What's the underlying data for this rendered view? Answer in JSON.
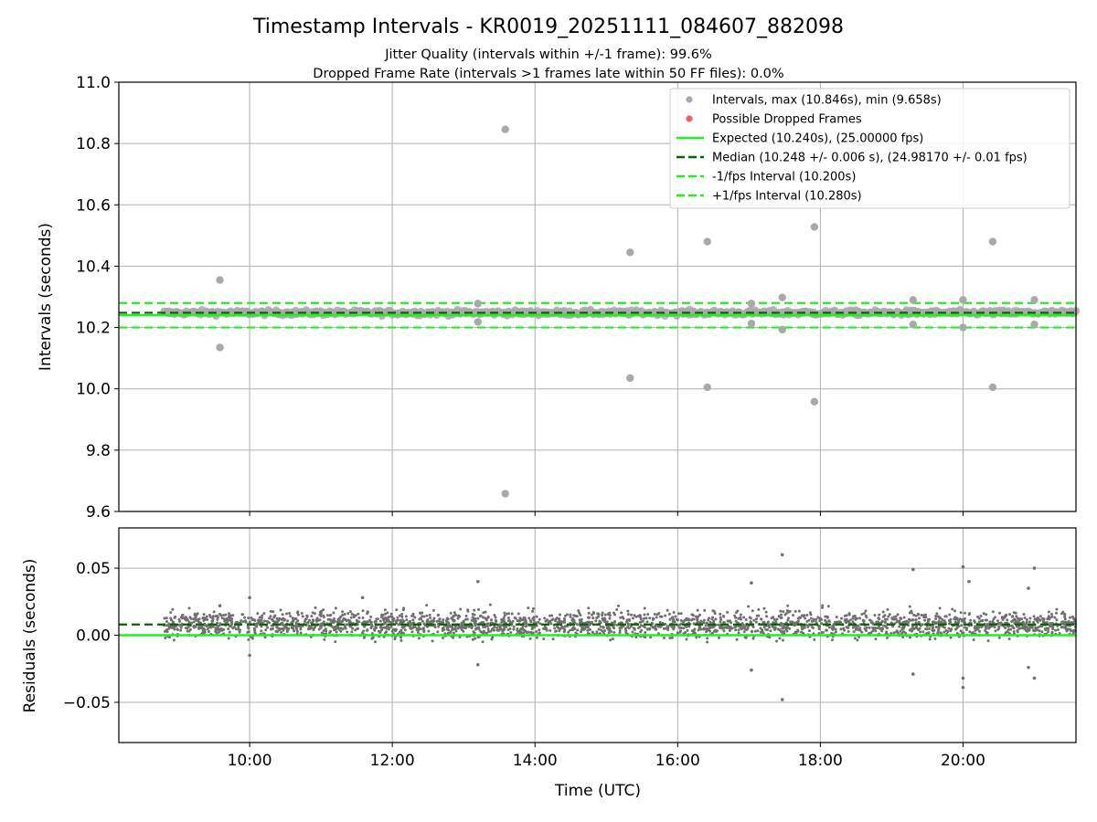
{
  "chart_data": [
    {
      "type": "scatter",
      "panel": "intervals",
      "title": "Timestamp Intervals - KR0019_20251111_084607_882098",
      "subtitle_1": "Jitter Quality (intervals within +/-1 frame): 99.6%",
      "subtitle_2": "Dropped Frame Rate (intervals >1 frames late within 50 FF files): 0.0%",
      "ylabel": "Intervals (seconds)",
      "ylim": [
        9.6,
        11.0
      ],
      "yticks": [
        "9.6",
        "9.8",
        "10.0",
        "10.2",
        "10.4",
        "10.6",
        "10.8",
        "11.0"
      ],
      "xlim": [
        "08:10",
        "21:35"
      ],
      "data_start": "08:48",
      "data_end": "21:35",
      "grid": true,
      "legend_position": "upper-right",
      "legend": [
        {
          "label": "Intervals, max (10.846s), min (9.658s)",
          "kind": "marker",
          "color": "#a9a9a9"
        },
        {
          "label": "Possible Dropped Frames",
          "kind": "marker",
          "color": "#f06060"
        },
        {
          "label": "Expected (10.240s), (25.00000 fps)",
          "kind": "solid",
          "color": "#22ee22"
        },
        {
          "label": "Median (10.248 +/- 0.006 s), (24.98170 +/- 0.01 fps)",
          "kind": "dashed",
          "color": "#006400"
        },
        {
          "label": "-1/fps Interval (10.200s)",
          "kind": "dashed",
          "color": "#22ee22"
        },
        {
          "label": "+1/fps Interval (10.280s)",
          "kind": "dashed",
          "color": "#22ee22"
        }
      ],
      "reference_lines": {
        "expected": 10.24,
        "median": 10.248,
        "lower": 10.2,
        "upper": 10.28
      },
      "outliers": [
        {
          "x": "09:35",
          "y": 10.355
        },
        {
          "x": "09:35",
          "y": 10.135
        },
        {
          "x": "13:35",
          "y": 10.846
        },
        {
          "x": "13:35",
          "y": 9.658
        },
        {
          "x": "15:20",
          "y": 10.445
        },
        {
          "x": "15:20",
          "y": 10.035
        },
        {
          "x": "16:25",
          "y": 10.48
        },
        {
          "x": "16:25",
          "y": 10.005
        },
        {
          "x": "17:28",
          "y": 10.298
        },
        {
          "x": "17:28",
          "y": 10.193
        },
        {
          "x": "17:55",
          "y": 10.528
        },
        {
          "x": "17:55",
          "y": 9.958
        },
        {
          "x": "19:18",
          "y": 10.29
        },
        {
          "x": "19:18",
          "y": 10.21
        },
        {
          "x": "20:00",
          "y": 10.29
        },
        {
          "x": "20:00",
          "y": 10.2
        },
        {
          "x": "20:25",
          "y": 10.48
        },
        {
          "x": "20:25",
          "y": 10.005
        },
        {
          "x": "21:00",
          "y": 10.29
        },
        {
          "x": "21:00",
          "y": 10.21
        },
        {
          "x": "13:12",
          "y": 10.278
        },
        {
          "x": "13:12",
          "y": 10.218
        },
        {
          "x": "17:02",
          "y": 10.278
        },
        {
          "x": "17:02",
          "y": 10.213
        }
      ]
    },
    {
      "type": "scatter",
      "panel": "residuals",
      "ylabel": "Residuals (seconds)",
      "xlabel": "Time (UTC)",
      "ylim": [
        -0.08,
        0.08
      ],
      "yticks": [
        "−0.05",
        "0.00",
        "0.05"
      ],
      "ytick_values": [
        -0.05,
        0.0,
        0.05
      ],
      "xticks": [
        "10:00",
        "12:00",
        "14:00",
        "16:00",
        "18:00",
        "20:00"
      ],
      "xlim": [
        "08:10",
        "21:35"
      ],
      "grid": true,
      "reference_lines": {
        "zero": 0.0,
        "median_offset": 0.008
      },
      "outliers": [
        {
          "x": "09:35",
          "y": 0.022
        },
        {
          "x": "10:00",
          "y": 0.028
        },
        {
          "x": "10:00",
          "y": -0.015
        },
        {
          "x": "11:35",
          "y": 0.028
        },
        {
          "x": "13:12",
          "y": 0.04
        },
        {
          "x": "13:12",
          "y": -0.022
        },
        {
          "x": "17:02",
          "y": 0.039
        },
        {
          "x": "17:02",
          "y": -0.026
        },
        {
          "x": "17:28",
          "y": 0.06
        },
        {
          "x": "17:28",
          "y": -0.048
        },
        {
          "x": "19:18",
          "y": 0.049
        },
        {
          "x": "19:18",
          "y": -0.029
        },
        {
          "x": "20:00",
          "y": 0.051
        },
        {
          "x": "20:00",
          "y": -0.032
        },
        {
          "x": "20:00",
          "y": -0.039
        },
        {
          "x": "20:05",
          "y": 0.04
        },
        {
          "x": "20:55",
          "y": 0.035
        },
        {
          "x": "20:55",
          "y": -0.024
        },
        {
          "x": "21:00",
          "y": 0.05
        },
        {
          "x": "21:00",
          "y": -0.032
        }
      ]
    }
  ]
}
